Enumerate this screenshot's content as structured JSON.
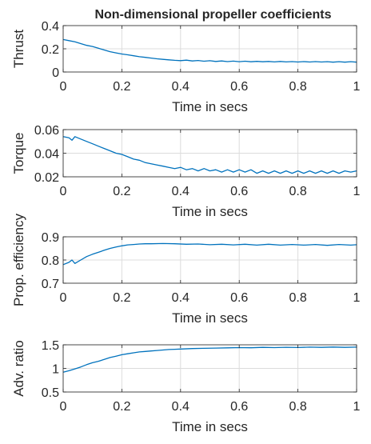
{
  "chart_data": [
    {
      "type": "line",
      "title": "Non-dimensional propeller coefficients",
      "xlabel": "Time in secs",
      "ylabel": "Thrust",
      "xlim": [
        0,
        1
      ],
      "ylim": [
        0,
        0.4
      ],
      "xticks": [
        0,
        0.2,
        0.4,
        0.6,
        0.8,
        1
      ],
      "yticks": [
        0,
        0.2,
        0.4
      ],
      "grid": true,
      "series": [
        {
          "color": "#0072BD",
          "x": [
            0,
            0.02,
            0.04,
            0.06,
            0.08,
            0.1,
            0.12,
            0.14,
            0.16,
            0.18,
            0.2,
            0.22,
            0.24,
            0.26,
            0.28,
            0.3,
            0.32,
            0.34,
            0.36,
            0.38,
            0.4,
            0.42,
            0.44,
            0.46,
            0.48,
            0.5,
            0.52,
            0.54,
            0.56,
            0.58,
            0.6,
            0.62,
            0.64,
            0.66,
            0.68,
            0.7,
            0.72,
            0.74,
            0.76,
            0.78,
            0.8,
            0.82,
            0.84,
            0.86,
            0.88,
            0.9,
            0.92,
            0.94,
            0.96,
            0.98,
            1
          ],
          "y": [
            0.28,
            0.27,
            0.26,
            0.245,
            0.23,
            0.22,
            0.205,
            0.19,
            0.175,
            0.165,
            0.155,
            0.148,
            0.14,
            0.132,
            0.126,
            0.12,
            0.114,
            0.109,
            0.105,
            0.101,
            0.098,
            0.102,
            0.095,
            0.099,
            0.093,
            0.097,
            0.091,
            0.095,
            0.09,
            0.094,
            0.089,
            0.093,
            0.088,
            0.092,
            0.088,
            0.091,
            0.087,
            0.091,
            0.087,
            0.09,
            0.086,
            0.09,
            0.086,
            0.09,
            0.086,
            0.089,
            0.085,
            0.089,
            0.085,
            0.089,
            0.085
          ]
        }
      ]
    },
    {
      "type": "line",
      "xlabel": "Time in secs",
      "ylabel": "Torque",
      "xlim": [
        0,
        1
      ],
      "ylim": [
        0.02,
        0.06
      ],
      "xticks": [
        0,
        0.2,
        0.4,
        0.6,
        0.8,
        1
      ],
      "yticks": [
        0.02,
        0.04,
        0.06
      ],
      "grid": true,
      "series": [
        {
          "color": "#0072BD",
          "x": [
            0,
            0.02,
            0.03,
            0.04,
            0.06,
            0.08,
            0.1,
            0.12,
            0.14,
            0.16,
            0.18,
            0.2,
            0.22,
            0.24,
            0.26,
            0.28,
            0.3,
            0.32,
            0.34,
            0.36,
            0.38,
            0.4,
            0.42,
            0.44,
            0.46,
            0.48,
            0.5,
            0.52,
            0.54,
            0.56,
            0.58,
            0.6,
            0.62,
            0.64,
            0.66,
            0.68,
            0.7,
            0.72,
            0.74,
            0.76,
            0.78,
            0.8,
            0.82,
            0.84,
            0.86,
            0.88,
            0.9,
            0.92,
            0.94,
            0.96,
            0.98,
            1
          ],
          "y": [
            0.054,
            0.053,
            0.051,
            0.054,
            0.052,
            0.05,
            0.048,
            0.046,
            0.044,
            0.042,
            0.04,
            0.039,
            0.037,
            0.035,
            0.034,
            0.032,
            0.031,
            0.03,
            0.029,
            0.028,
            0.027,
            0.028,
            0.026,
            0.027,
            0.025,
            0.027,
            0.025,
            0.026,
            0.024,
            0.026,
            0.024,
            0.026,
            0.024,
            0.026,
            0.023,
            0.025,
            0.023,
            0.025,
            0.023,
            0.025,
            0.023,
            0.025,
            0.023,
            0.025,
            0.023,
            0.025,
            0.023,
            0.025,
            0.023,
            0.025,
            0.024,
            0.025
          ]
        }
      ]
    },
    {
      "type": "line",
      "xlabel": "Time in secs",
      "ylabel": "Prop. efficiency",
      "xlim": [
        0,
        1
      ],
      "ylim": [
        0.7,
        0.9
      ],
      "xticks": [
        0,
        0.2,
        0.4,
        0.6,
        0.8,
        1
      ],
      "yticks": [
        0.7,
        0.8,
        0.9
      ],
      "grid": true,
      "series": [
        {
          "color": "#0072BD",
          "x": [
            0,
            0.02,
            0.03,
            0.04,
            0.06,
            0.08,
            0.1,
            0.12,
            0.14,
            0.16,
            0.18,
            0.2,
            0.22,
            0.24,
            0.26,
            0.28,
            0.3,
            0.34,
            0.38,
            0.42,
            0.46,
            0.5,
            0.54,
            0.58,
            0.62,
            0.66,
            0.7,
            0.74,
            0.78,
            0.82,
            0.86,
            0.9,
            0.94,
            0.98,
            1
          ],
          "y": [
            0.78,
            0.79,
            0.8,
            0.785,
            0.8,
            0.815,
            0.825,
            0.833,
            0.842,
            0.85,
            0.856,
            0.861,
            0.865,
            0.867,
            0.869,
            0.87,
            0.87,
            0.871,
            0.87,
            0.868,
            0.869,
            0.866,
            0.868,
            0.865,
            0.868,
            0.864,
            0.868,
            0.864,
            0.867,
            0.864,
            0.867,
            0.863,
            0.867,
            0.864,
            0.866
          ]
        }
      ]
    },
    {
      "type": "line",
      "xlabel": "Time in secs",
      "ylabel": "Adv. ratio",
      "xlim": [
        0,
        1
      ],
      "ylim": [
        0.5,
        1.5
      ],
      "xticks": [
        0,
        0.2,
        0.4,
        0.6,
        0.8,
        1
      ],
      "yticks": [
        0.5,
        1,
        1.5
      ],
      "grid": true,
      "series": [
        {
          "color": "#0072BD",
          "x": [
            0,
            0.02,
            0.04,
            0.06,
            0.08,
            0.1,
            0.12,
            0.14,
            0.16,
            0.18,
            0.2,
            0.22,
            0.24,
            0.26,
            0.28,
            0.3,
            0.32,
            0.34,
            0.36,
            0.38,
            0.4,
            0.44,
            0.48,
            0.52,
            0.56,
            0.6,
            0.64,
            0.68,
            0.72,
            0.76,
            0.8,
            0.84,
            0.88,
            0.92,
            0.96,
            1
          ],
          "y": [
            0.92,
            0.95,
            0.99,
            1.03,
            1.08,
            1.12,
            1.15,
            1.19,
            1.23,
            1.26,
            1.29,
            1.31,
            1.33,
            1.35,
            1.36,
            1.37,
            1.38,
            1.39,
            1.4,
            1.405,
            1.41,
            1.42,
            1.425,
            1.43,
            1.435,
            1.44,
            1.438,
            1.445,
            1.44,
            1.448,
            1.443,
            1.45,
            1.445,
            1.452,
            1.446,
            1.45
          ]
        }
      ]
    }
  ]
}
